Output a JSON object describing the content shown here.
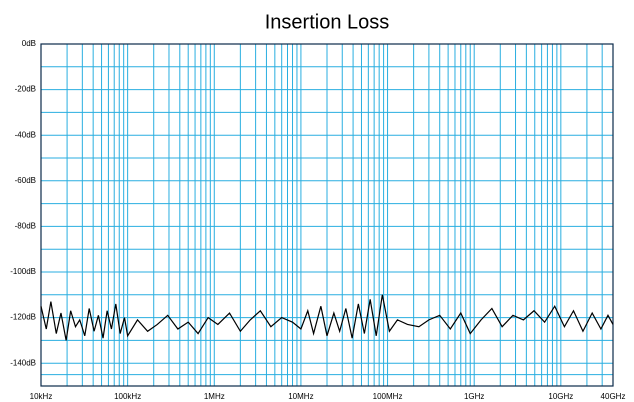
{
  "chart_data": {
    "type": "line",
    "title": "Insertion Loss",
    "x": [
      10000,
      11500,
      13000,
      15000,
      17000,
      19500,
      22000,
      25000,
      28000,
      32000,
      36000,
      41000,
      46000,
      52000,
      58000,
      65000,
      73000,
      82000,
      92000,
      100000,
      130000,
      170000,
      220000,
      290000,
      380000,
      500000,
      650000,
      850000,
      1100000,
      1500000,
      2000000,
      2600000,
      3400000,
      4500000,
      6000000,
      8000000,
      10000000,
      12000000,
      14000000,
      17000000,
      20000000,
      24000000,
      28000000,
      33000000,
      39000000,
      46000000,
      54000000,
      63000000,
      74000000,
      87000000,
      105000000,
      130000000,
      170000000,
      230000000,
      300000000,
      400000000,
      530000000,
      700000000,
      900000000,
      1200000000,
      1600000000,
      2100000000,
      2800000000,
      3700000000,
      4900000000,
      6500000000,
      8500000000,
      11000000000,
      14000000000,
      18000000000,
      23000000000,
      29000000000,
      35000000000,
      40000000000
    ],
    "series": [
      {
        "name": "Insertion Loss",
        "color": "#000000",
        "values": [
          -115,
          -125,
          -113,
          -127,
          -118,
          -130,
          -117,
          -124,
          -121,
          -128,
          -116,
          -126,
          -119,
          -129,
          -117,
          -125,
          -114,
          -127,
          -120,
          -128,
          -121,
          -126,
          -123,
          -119,
          -125,
          -122,
          -127,
          -120,
          -123,
          -118,
          -126,
          -121,
          -117,
          -124,
          -120,
          -122,
          -125,
          -117,
          -127,
          -115,
          -128,
          -118,
          -126,
          -116,
          -129,
          -114,
          -127,
          -112,
          -128,
          -110,
          -126,
          -121,
          -123,
          -124,
          -121,
          -119,
          -125,
          -118,
          -127,
          -121,
          -116,
          -124,
          -119,
          -121,
          -117,
          -122,
          -115,
          -124,
          -117,
          -126,
          -118,
          -125,
          -119,
          -123
        ]
      }
    ],
    "xlim": [
      10000,
      40000000000
    ],
    "xlog": true,
    "xticks": [
      {
        "value": 10000,
        "label": "10kHz"
      },
      {
        "value": 100000,
        "label": "100kHz"
      },
      {
        "value": 1000000,
        "label": "1MHz"
      },
      {
        "value": 10000000,
        "label": "10MHz"
      },
      {
        "value": 100000000,
        "label": "100MHz"
      },
      {
        "value": 1000000000,
        "label": "1GHz"
      },
      {
        "value": 10000000000,
        "label": "10GHz"
      },
      {
        "value": 40000000000,
        "label": "40GHz"
      }
    ],
    "ylim": [
      -150,
      0
    ],
    "yticks": [
      {
        "value": 0,
        "label": "0dB"
      },
      {
        "value": -20,
        "label": "-20dB"
      },
      {
        "value": -40,
        "label": "-40dB"
      },
      {
        "value": -60,
        "label": "-60dB"
      },
      {
        "value": -80,
        "label": "-80dB"
      },
      {
        "value": -100,
        "label": "-100dB"
      },
      {
        "value": -120,
        "label": "-120dB"
      },
      {
        "value": -140,
        "label": "-140dB"
      }
    ],
    "grid": true,
    "grid_color": "#29aee0"
  }
}
